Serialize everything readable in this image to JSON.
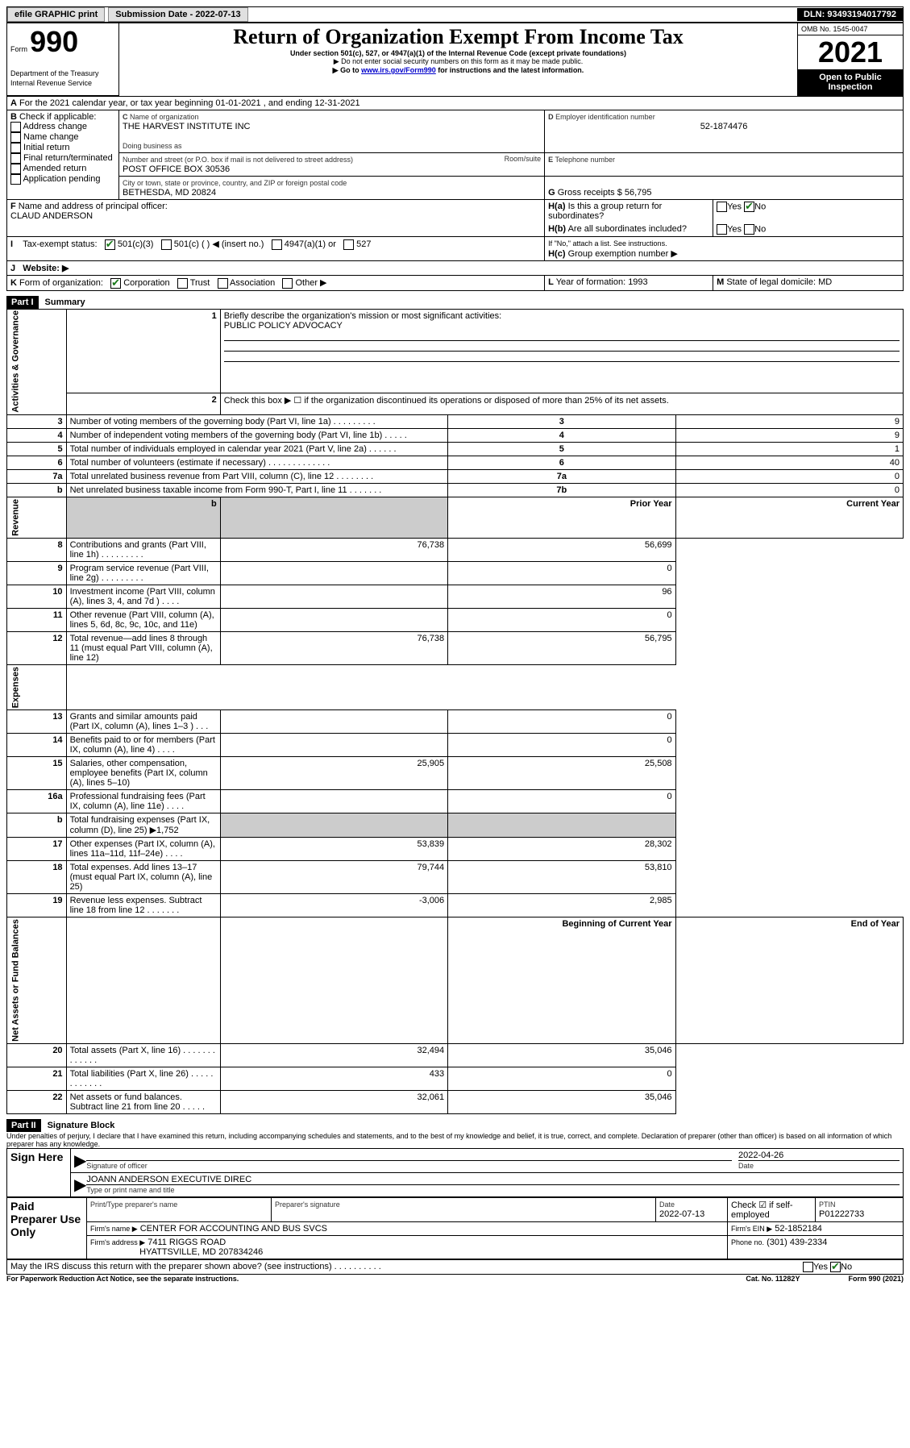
{
  "header": {
    "efile_label": "efile GRAPHIC print",
    "submission_date_label": "Submission Date - 2022-07-13",
    "dln": "DLN: 93493194017792"
  },
  "titleblock": {
    "form_label": "Form",
    "form_num": "990",
    "dept": "Department of the Treasury",
    "irs": "Internal Revenue Service",
    "title": "Return of Organization Exempt From Income Tax",
    "subtitle": "Under section 501(c), 527, or 4947(a)(1) of the Internal Revenue Code (except private foundations)",
    "note1": "▶ Do not enter social security numbers on this form as it may be made public.",
    "note2_pre": "▶ Go to ",
    "note2_link": "www.irs.gov/Form990",
    "note2_post": " for instructions and the latest information.",
    "omb": "OMB No. 1545-0047",
    "year": "2021",
    "inspection": "Open to Public Inspection"
  },
  "A": {
    "line": "For the 2021 calendar year, or tax year beginning 01-01-2021   , and ending 12-31-2021"
  },
  "B": {
    "label": "Check if applicable:",
    "items": [
      "Address change",
      "Name change",
      "Initial return",
      "Final return/terminated",
      "Amended return",
      "Application pending"
    ]
  },
  "C": {
    "name_label": "Name of organization",
    "name": "THE HARVEST INSTITUTE INC",
    "dba_label": "Doing business as",
    "street_label": "Number and street (or P.O. box if mail is not delivered to street address)",
    "room_label": "Room/suite",
    "street": "POST OFFICE BOX 30536",
    "city_label": "City or town, state or province, country, and ZIP or foreign postal code",
    "city": "BETHESDA, MD  20824"
  },
  "D": {
    "label": "Employer identification number",
    "value": "52-1874476"
  },
  "E": {
    "label": "Telephone number"
  },
  "F": {
    "label": "Name and address of principal officer:",
    "value": "CLAUD ANDERSON"
  },
  "G": {
    "label": "Gross receipts $",
    "value": "56,795"
  },
  "H": {
    "a": "Is this a group return for subordinates?",
    "b": "Are all subordinates included?",
    "b_note": "If \"No,\" attach a list. See instructions.",
    "c": "Group exemption number ▶",
    "yes": "Yes",
    "no": "No"
  },
  "I": {
    "label": "Tax-exempt status:",
    "opts": [
      "501(c)(3)",
      "501(c) (  ) ◀ (insert no.)",
      "4947(a)(1) or",
      "527"
    ]
  },
  "J": {
    "label": "Website: ▶"
  },
  "K": {
    "label": "Form of organization:",
    "opts": [
      "Corporation",
      "Trust",
      "Association",
      "Other ▶"
    ]
  },
  "L": {
    "label": "Year of formation:",
    "value": "1993"
  },
  "M": {
    "label": "State of legal domicile:",
    "value": "MD"
  },
  "part1": {
    "tag": "Part I",
    "title": "Summary",
    "sections": {
      "governance": "Activities & Governance",
      "revenue": "Revenue",
      "expenses": "Expenses",
      "netassets": "Net Assets or Fund Balances"
    },
    "l1": "Briefly describe the organization's mission or most significant activities:",
    "l1_val": "PUBLIC POLICY ADVOCACY",
    "l2": "Check this box ▶ ☐  if the organization discontinued its operations or disposed of more than 25% of its net assets.",
    "lines_small": [
      {
        "n": "3",
        "t": "Number of voting members of the governing body (Part VI, line 1a)  .    .    .    .    .    .    .    .    .",
        "box": "3",
        "v": "9"
      },
      {
        "n": "4",
        "t": "Number of independent voting members of the governing body (Part VI, line 1b)   .    .    .    .    .",
        "box": "4",
        "v": "9"
      },
      {
        "n": "5",
        "t": "Total number of individuals employed in calendar year 2021 (Part V, line 2a)   .    .    .    .    .    .",
        "box": "5",
        "v": "1"
      },
      {
        "n": "6",
        "t": "Total number of volunteers (estimate if necessary)   .    .    .    .    .    .    .    .    .    .    .    .    .",
        "box": "6",
        "v": "40"
      },
      {
        "n": "7a",
        "t": "Total unrelated business revenue from Part VIII, column (C), line 12   .    .    .    .    .    .    .    .",
        "box": "7a",
        "v": "0"
      },
      {
        "n": "b",
        "t": "Net unrelated business taxable income from Form 990-T, Part I, line 11   .    .    .    .    .    .    .",
        "box": "7b",
        "v": "0"
      }
    ],
    "col_prior": "Prior Year",
    "col_current": "Current Year",
    "revenue_lines": [
      {
        "n": "8",
        "t": "Contributions and grants (Part VIII, line 1h)   .    .    .    .    .    .    .    .    .",
        "p": "76,738",
        "c": "56,699"
      },
      {
        "n": "9",
        "t": "Program service revenue (Part VIII, line 2g)   .    .    .    .    .    .    .    .    .",
        "p": "",
        "c": "0"
      },
      {
        "n": "10",
        "t": "Investment income (Part VIII, column (A), lines 3, 4, and 7d )   .    .    .    .",
        "p": "",
        "c": "96"
      },
      {
        "n": "11",
        "t": "Other revenue (Part VIII, column (A), lines 5, 6d, 8c, 9c, 10c, and 11e)",
        "p": "",
        "c": "0"
      },
      {
        "n": "12",
        "t": "Total revenue—add lines 8 through 11 (must equal Part VIII, column (A), line 12)",
        "p": "76,738",
        "c": "56,795"
      }
    ],
    "expense_lines": [
      {
        "n": "13",
        "t": "Grants and similar amounts paid (Part IX, column (A), lines 1–3 )   .    .    .",
        "p": "",
        "c": "0"
      },
      {
        "n": "14",
        "t": "Benefits paid to or for members (Part IX, column (A), line 4)   .    .    .    .",
        "p": "",
        "c": "0"
      },
      {
        "n": "15",
        "t": "Salaries, other compensation, employee benefits (Part IX, column (A), lines 5–10)",
        "p": "25,905",
        "c": "25,508"
      },
      {
        "n": "16a",
        "t": "Professional fundraising fees (Part IX, column (A), line 11e)   .    .    .    .",
        "p": "",
        "c": "0"
      }
    ],
    "l16b": "Total fundraising expenses (Part IX, column (D), line 25) ▶1,752",
    "expense_lines2": [
      {
        "n": "17",
        "t": "Other expenses (Part IX, column (A), lines 11a–11d, 11f–24e)   .    .    .    .",
        "p": "53,839",
        "c": "28,302"
      },
      {
        "n": "18",
        "t": "Total expenses. Add lines 13–17 (must equal Part IX, column (A), line 25)",
        "p": "79,744",
        "c": "53,810"
      },
      {
        "n": "19",
        "t": "Revenue less expenses. Subtract line 18 from line 12 .    .    .    .    .    .    .",
        "p": "-3,006",
        "c": "2,985"
      }
    ],
    "col_begin": "Beginning of Current Year",
    "col_end": "End of Year",
    "net_lines": [
      {
        "n": "20",
        "t": "Total assets (Part X, line 16)  .    .    .    .    .    .    .    .    .    .    .    .    .",
        "p": "32,494",
        "c": "35,046"
      },
      {
        "n": "21",
        "t": "Total liabilities (Part X, line 26)  .    .    .    .    .    .    .    .    .    .    .    .",
        "p": "433",
        "c": "0"
      },
      {
        "n": "22",
        "t": "Net assets or fund balances. Subtract line 21 from line 20 .    .    .    .    .",
        "p": "32,061",
        "c": "35,046"
      }
    ]
  },
  "part2": {
    "tag": "Part II",
    "title": "Signature Block",
    "perjury": "Under penalties of perjury, I declare that I have examined this return, including accompanying schedules and statements, and to the best of my knowledge and belief, it is true, correct, and complete. Declaration of preparer (other than officer) is based on all information of which preparer has any knowledge.",
    "sign_here": "Sign Here",
    "sig_officer": "Signature of officer",
    "sig_date": "2022-04-26",
    "date_label": "Date",
    "officer_name": "JOANN ANDERSON  EXECUTIVE DIREC",
    "officer_name_label": "Type or print name and title",
    "paid_prep": "Paid Preparer Use Only",
    "prep_name_label": "Print/Type preparer's name",
    "prep_sig_label": "Preparer's signature",
    "prep_date": "2022-07-13",
    "self_emp": "Check ☑ if self-employed",
    "ptin_label": "PTIN",
    "ptin": "P01222733",
    "firm_name_label": "Firm's name    ▶",
    "firm_name": "CENTER FOR ACCOUNTING AND BUS SVCS",
    "firm_ein_label": "Firm's EIN ▶",
    "firm_ein": "52-1852184",
    "firm_addr_label": "Firm's address ▶",
    "firm_addr": "7411 RIGGS ROAD",
    "firm_city": "HYATTSVILLE, MD  207834246",
    "phone_label": "Phone no.",
    "phone": "(301) 439-2334"
  },
  "footer": {
    "discuss": "May the IRS discuss this return with the preparer shown above? (see instructions)   .    .    .    .    .    .    .    .    .    .",
    "paperwork": "For Paperwork Reduction Act Notice, see the separate instructions.",
    "cat": "Cat. No. 11282Y",
    "form": "Form 990 (2021)"
  }
}
